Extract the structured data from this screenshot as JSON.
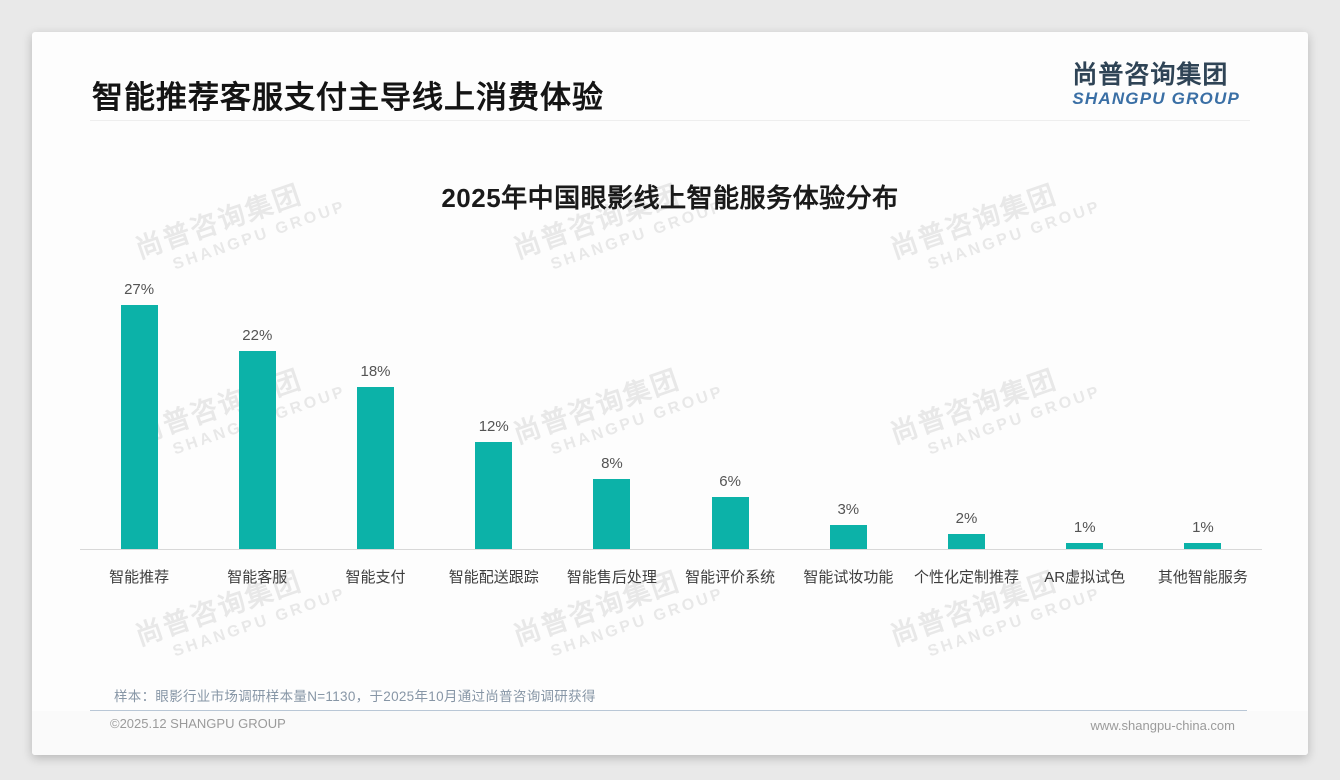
{
  "page": {
    "title": "智能推荐客服支付主导线上消费体验",
    "logo": {
      "cn": "尚普咨询集团",
      "en": "SHANGPU GROUP"
    },
    "watermark": {
      "cn": "尚普咨询集团",
      "en": "SHANGPU GROUP"
    },
    "footnote": "样本：眼影行业市场调研样本量N=1130，于2025年10月通过尚普咨询调研获得",
    "footer": {
      "copyright": "©2025.12 SHANGPU GROUP",
      "website": "www.shangpu-china.com"
    }
  },
  "chart_data": {
    "type": "bar",
    "title": "2025年中国眼影线上智能服务体验分布",
    "categories": [
      "智能推荐",
      "智能客服",
      "智能支付",
      "智能配送跟踪",
      "智能售后处理",
      "智能评价系统",
      "智能试妆功能",
      "个性化定制推荐",
      "AR虚拟试色",
      "其他智能服务"
    ],
    "values": [
      27,
      22,
      18,
      12,
      8,
      6,
      3,
      2,
      1,
      1
    ],
    "value_labels": [
      "27%",
      "22%",
      "18%",
      "12%",
      "8%",
      "6%",
      "3%",
      "2%",
      "1%",
      "1%"
    ],
    "unit": "%",
    "ylim": [
      0,
      30
    ],
    "bar_color": "#0CB2A8",
    "xlabel": "",
    "ylabel": "",
    "grid": false,
    "legend": "none"
  }
}
